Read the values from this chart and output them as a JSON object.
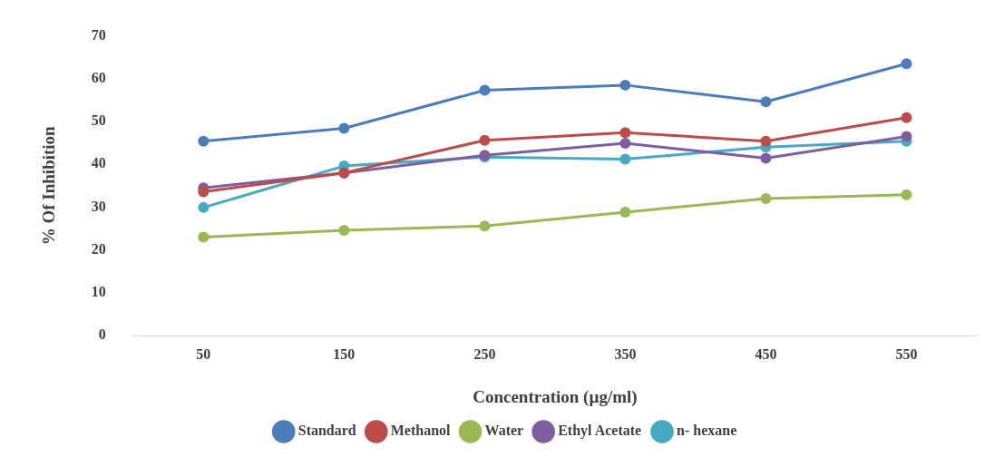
{
  "chart_data": {
    "type": "line",
    "xlabel": "Concentration (µg/ml)",
    "ylabel": "% Of Inhibition",
    "categories": [
      "50",
      "150",
      "250",
      "350",
      "450",
      "550"
    ],
    "series": [
      {
        "name": "Standard",
        "color": "#4a7ebb",
        "values": [
          45.4,
          48.4,
          57.3,
          58.5,
          54.6,
          63.5
        ]
      },
      {
        "name": "Methanol",
        "color": "#be4b48",
        "values": [
          33.6,
          38,
          45.6,
          47.4,
          45.4,
          50.9
        ]
      },
      {
        "name": "Water",
        "color": "#98b954",
        "values": [
          23,
          24.6,
          25.6,
          28.8,
          32,
          32.9
        ]
      },
      {
        "name": "Ethyl Acetate",
        "color": "#7d5fa0",
        "values": [
          34.5,
          38,
          42.1,
          44.9,
          41.4,
          46.5
        ]
      },
      {
        "name": "n- hexane",
        "color": "#46aac5",
        "values": [
          29.9,
          39.6,
          41.7,
          41.2,
          44,
          45.4
        ]
      }
    ],
    "ylim": [
      0,
      70
    ],
    "yticks": [
      0,
      10,
      20,
      30,
      40,
      50,
      60,
      70
    ],
    "grid": false,
    "legend": "bottom",
    "marker": "circle",
    "line_style": "solid"
  }
}
